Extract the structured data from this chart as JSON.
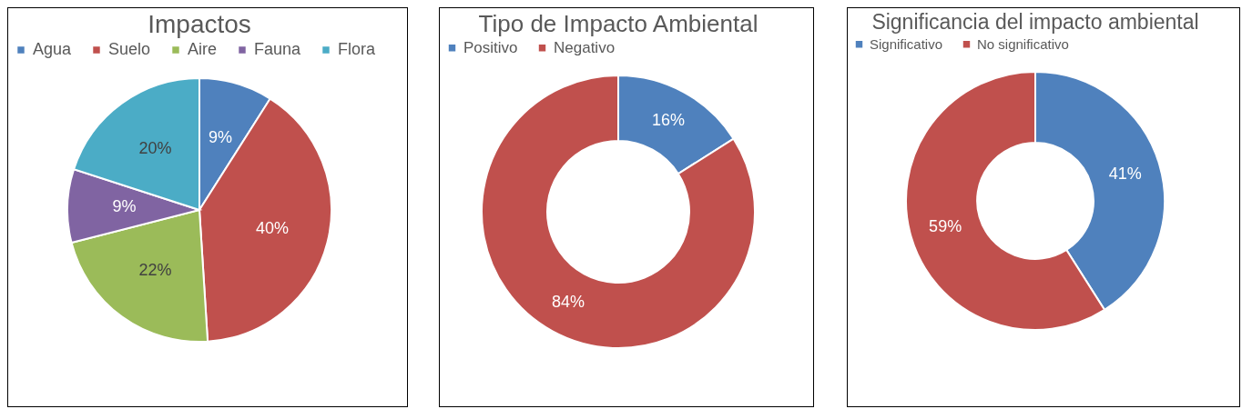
{
  "chart_data": [
    {
      "type": "pie",
      "title": "Impactos",
      "categories": [
        "Agua",
        "Suelo",
        "Aire",
        "Fauna",
        "Flora"
      ],
      "values": [
        9,
        40,
        22,
        9,
        20
      ],
      "colors": [
        "#4f81bd",
        "#c0504d",
        "#9bbb59",
        "#8064a2",
        "#4bacc6"
      ],
      "value_labels": [
        "9%",
        "40%",
        "22%",
        "9%",
        "20%"
      ],
      "legend": "top"
    },
    {
      "type": "donut",
      "title": "Tipo de Impacto Ambiental",
      "categories": [
        "Positivo",
        "Negativo"
      ],
      "values": [
        16,
        84
      ],
      "colors": [
        "#4f81bd",
        "#c0504d"
      ],
      "value_labels": [
        "16%",
        "84%"
      ],
      "legend": "top"
    },
    {
      "type": "donut",
      "title": "Significancia del impacto ambiental",
      "categories": [
        "Significativo",
        "No significativo"
      ],
      "values": [
        41,
        59
      ],
      "colors": [
        "#4f81bd",
        "#c0504d"
      ],
      "value_labels": [
        "41%",
        "59%"
      ],
      "legend": "top"
    }
  ]
}
